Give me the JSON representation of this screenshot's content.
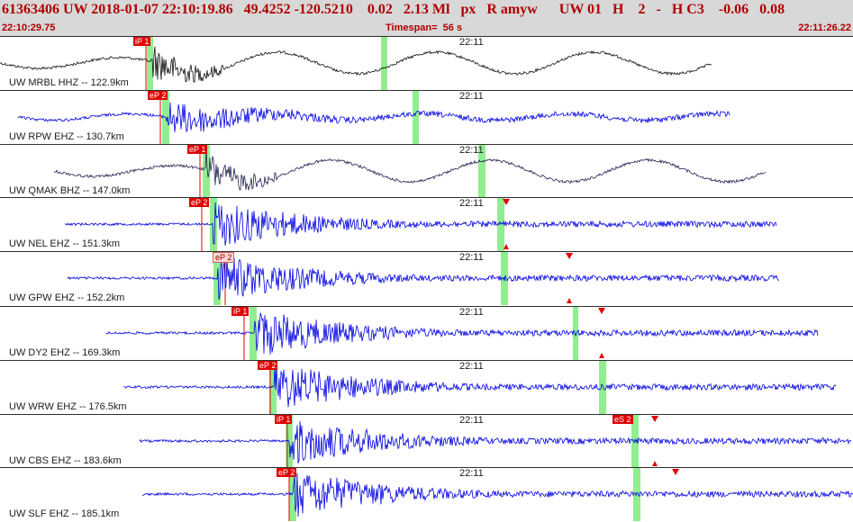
{
  "header": {
    "title": "61363406 UW 2018-01-07 22:10:19.86   49.4252 -120.5210    0.02   2.13 Ml   px   R amyw      UW 01   H    2   -   H C3    -0.06   0.08",
    "start_time": "22:10:29.75",
    "timespan": "Timespan=  56 s",
    "end_time": "22:11:26.22"
  },
  "colors": {
    "header_bg": "#d8d8d8",
    "header_text": "#b00000",
    "trace_black": "#101010",
    "trace_blue": "#0000e0",
    "trace_navy": "#202050",
    "pick_red": "#e00000",
    "marker_green": "#90ee90"
  },
  "panels": [
    {
      "label": "UW MRBL HHZ -- 122.9km",
      "time": "22:11",
      "pick": "iP 1",
      "color": "black",
      "pick_style": "red",
      "shading": [
        [
          163,
          170
        ],
        [
          423,
          430
        ]
      ],
      "triangles": []
    },
    {
      "label": "UW RPW EHZ -- 130.7km",
      "time": "22:11",
      "pick": "eP 2",
      "color": "blue",
      "pick_style": "red",
      "shading": [
        [
          180,
          188
        ],
        [
          458,
          465
        ]
      ],
      "triangles": []
    },
    {
      "label": "UW QMAK BHZ -- 147.0km",
      "time": "22:11",
      "pick": "eP 1",
      "color": "navy",
      "pick_style": "red",
      "shading": [
        [
          225,
          233
        ],
        [
          531,
          539
        ]
      ],
      "triangles": []
    },
    {
      "label": "UW NEL EHZ -- 151.3km",
      "time": "22:11",
      "pick": "eP 2",
      "color": "blue",
      "pick_style": "red",
      "shading": [
        [
          233,
          241
        ],
        [
          552,
          560
        ]
      ],
      "triangles": [
        [
          "down",
          562
        ],
        [
          "up",
          562
        ]
      ]
    },
    {
      "label": "UW GPW EHZ -- 152.2km",
      "time": "22:11",
      "pick": "eP 2",
      "color": "blue",
      "pick_style": "pale",
      "shading": [
        [
          237,
          245
        ],
        [
          556,
          564
        ]
      ],
      "triangles": [
        [
          "down",
          632
        ],
        [
          "up",
          632
        ]
      ]
    },
    {
      "label": "UW DY2 EHZ -- 169.3km",
      "time": "22:11",
      "pick": "iP 1",
      "color": "blue",
      "pick_style": "red",
      "shading": [
        [
          277,
          285
        ],
        [
          636,
          642
        ]
      ],
      "triangles": [
        [
          "down",
          668
        ],
        [
          "up",
          668
        ]
      ]
    },
    {
      "label": "UW WRW EHZ -- 176.5km",
      "time": "22:11",
      "pick": "eP 2",
      "color": "blue",
      "pick_style": "red",
      "shading": [
        [
          299,
          307
        ],
        [
          665,
          673
        ]
      ],
      "triangles": []
    },
    {
      "label": "UW CBS EHZ -- 183.6km",
      "time": "22:11",
      "pick": "iP 1",
      "color": "blue",
      "pick_style": "red",
      "pick2": "eS 2",
      "shading": [
        [
          317,
          325
        ],
        [
          701,
          709
        ]
      ],
      "triangles": [
        [
          "down",
          727
        ],
        [
          "up",
          727
        ]
      ]
    },
    {
      "label": "UW SLF EHZ -- 185.1km",
      "time": "22:11",
      "pick": "eP 2",
      "color": "blue",
      "pick_style": "red",
      "shading": [
        [
          321,
          329
        ],
        [
          703,
          711
        ]
      ],
      "triangles": [
        [
          "down",
          750
        ]
      ]
    }
  ]
}
